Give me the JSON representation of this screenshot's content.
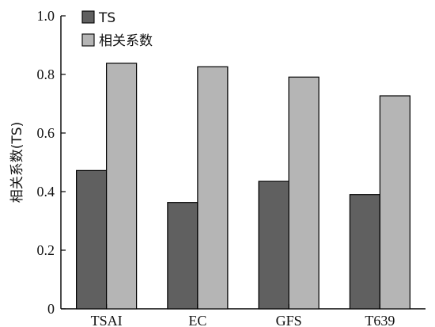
{
  "chart_data": {
    "type": "bar",
    "categories": [
      "TSAI",
      "EC",
      "GFS",
      "T639"
    ],
    "series": [
      {
        "name": "TS",
        "values": [
          0.472,
          0.363,
          0.435,
          0.39
        ],
        "color": "#606060"
      },
      {
        "name": "相关系数",
        "values": [
          0.838,
          0.826,
          0.791,
          0.727
        ],
        "color": "#b5b5b5"
      }
    ],
    "title": "",
    "xlabel": "",
    "ylabel": "相关系数(TS)",
    "ylim": [
      0,
      1.0
    ],
    "yticks": [
      "0",
      "0.2",
      "0.4",
      "0.6",
      "0.8",
      "1.0"
    ],
    "grid": false,
    "legend_position": "top-left"
  }
}
